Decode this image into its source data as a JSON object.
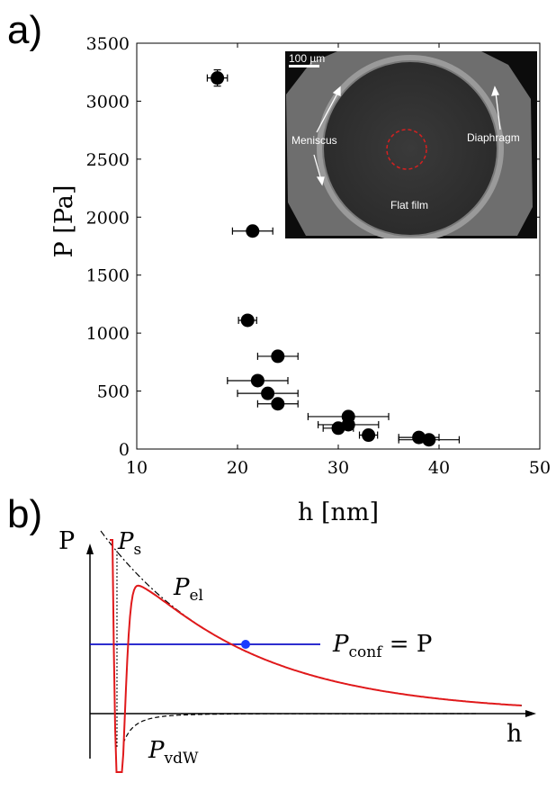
{
  "panels": {
    "a": "a)",
    "b": "b)"
  },
  "chart_data": [
    {
      "type": "scatter",
      "xlabel": "h [nm]",
      "ylabel": "P [Pa]",
      "xlim": [
        10,
        50
      ],
      "ylim": [
        0,
        3500
      ],
      "xticks": [
        10,
        20,
        30,
        40,
        50
      ],
      "yticks": [
        0,
        500,
        1000,
        1500,
        2000,
        2500,
        3000,
        3500
      ],
      "grid": false,
      "series": [
        {
          "color": "#000000",
          "points": [
            {
              "x": 18,
              "y": 3200,
              "xerr": 1,
              "yerr": 70
            },
            {
              "x": 21.5,
              "y": 1880,
              "xerr": 2
            },
            {
              "x": 21,
              "y": 1110,
              "xerr": 0.9
            },
            {
              "x": 24,
              "y": 800,
              "xerr": 2
            },
            {
              "x": 22,
              "y": 590,
              "xerr": 3
            },
            {
              "x": 23,
              "y": 480,
              "xerr": 3
            },
            {
              "x": 24,
              "y": 390,
              "xerr": 2
            },
            {
              "x": 31,
              "y": 280,
              "xerr": 4
            },
            {
              "x": 31,
              "y": 210,
              "xerr": 3
            },
            {
              "x": 30,
              "y": 180,
              "xerr": 1.5
            },
            {
              "x": 33,
              "y": 120,
              "xerr": 0.9
            },
            {
              "x": 38,
              "y": 100,
              "xerr": 2
            },
            {
              "x": 39,
              "y": 80,
              "xerr": 3
            }
          ]
        }
      ],
      "inset": {
        "scale_label": "100 µm",
        "labels": {
          "meniscus": "Meniscus",
          "diaphragm": "Diaphragm",
          "flat_film": "Flat film"
        },
        "circle_color": "#d42020"
      }
    },
    {
      "type": "line",
      "xlabel": "h",
      "ylabel": "P",
      "grid": false,
      "curves": [
        {
          "name": "P_s",
          "style": "dotted",
          "color": "#000000"
        },
        {
          "name": "P_el",
          "style": "dash-dot",
          "color": "#000000"
        },
        {
          "name": "P_vdW",
          "style": "dashed",
          "color": "#000000"
        },
        {
          "name": "total",
          "style": "solid",
          "color": "#e0191b"
        },
        {
          "name": "P_conf = P",
          "style": "solid",
          "color": "#1010c8"
        }
      ],
      "labels": {
        "ps": {
          "main": "P",
          "sub": "s"
        },
        "pel": {
          "main": "P",
          "sub": "el"
        },
        "pconf": {
          "main": "P",
          "sub": "conf",
          "rest": " = P"
        },
        "pvdw": {
          "main": "P",
          "sub": "vdW"
        }
      },
      "marker_color": "#1a3cff"
    }
  ]
}
